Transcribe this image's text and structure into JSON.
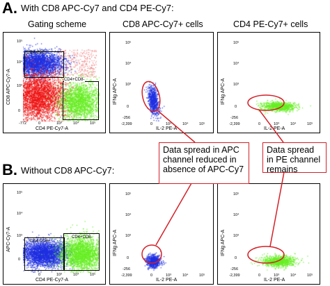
{
  "sectionA": {
    "letter": "A.",
    "title": "With CD8 APC-Cy7 and CD4 PE-Cy7:",
    "columns": [
      "Gating scheme",
      "CD8 APC-Cy7+ cells",
      "CD4 PE-Cy7+ cells"
    ],
    "gating": {
      "xlabel": "CD4 PE-Cy7-A",
      "ylabel": "CD8 APC-Cy7-A",
      "gate1": "CD4-CD8+",
      "gate2": "CD4+CD8-",
      "yticks": [
        "10⁵",
        "10⁴",
        "10³",
        "0"
      ],
      "xticks": [
        "-772",
        "0",
        "10³",
        "10⁴",
        "10⁵"
      ]
    },
    "cd8": {
      "xlabel": "IL-2 PE-A",
      "ylabel": "IFNg APC-A",
      "yticks": [
        "10⁵",
        "10⁴",
        "10³",
        "0",
        "-256"
      ],
      "xticks": [
        "-2,399",
        "0",
        "10³",
        "10⁴",
        "10⁵"
      ]
    },
    "cd4": {
      "xlabel": "IL-2 PE-A",
      "ylabel": "IFNg APC-A",
      "yticks": [
        "10⁵",
        "10⁴",
        "10³",
        "0",
        "-256"
      ],
      "xticks": [
        "-2,399",
        "0",
        "10³",
        "10⁴",
        "10⁵"
      ]
    }
  },
  "sectionB": {
    "letter": "B.",
    "title": "Without CD8 APC-Cy7:",
    "gating": {
      "xlabel": "CD4 PE-Cy7-A",
      "ylabel": "APC-Cy7-A",
      "gate1": "CD4-CD8+",
      "gate2": "CD4+CD8-",
      "yticks": [
        "10⁵",
        "10⁴",
        "10³",
        "0"
      ],
      "xticks": [
        "0",
        "10³",
        "10⁴",
        "10⁵"
      ]
    },
    "cd8": {
      "xlabel": "IL-2 PE-A",
      "ylabel": "IFNg APC-A",
      "yticks": [
        "10⁵",
        "10⁴",
        "10³",
        "0",
        "-256"
      ],
      "xticks": [
        "-2,399",
        "0",
        "10³",
        "10⁴",
        "10⁵"
      ]
    },
    "cd4": {
      "xlabel": "IL-2 PE-A",
      "ylabel": "IFNg APC-A",
      "yticks": [
        "10⁵",
        "10⁴",
        "10³",
        "0",
        "-256"
      ],
      "xticks": [
        "-2,399",
        "0",
        "10³",
        "10⁴",
        "10⁵"
      ]
    }
  },
  "callouts": {
    "left": "Data spread in APC channel reduced in absence of APC-Cy7",
    "right": "Data spread in PE channel remains"
  },
  "colors": {
    "cd8_population": "#1f2fe0",
    "double_negative": "#ee1111",
    "cd4_population": "#66ee22",
    "sparse_events": "#ee6666",
    "callout_border": "#d32027"
  }
}
